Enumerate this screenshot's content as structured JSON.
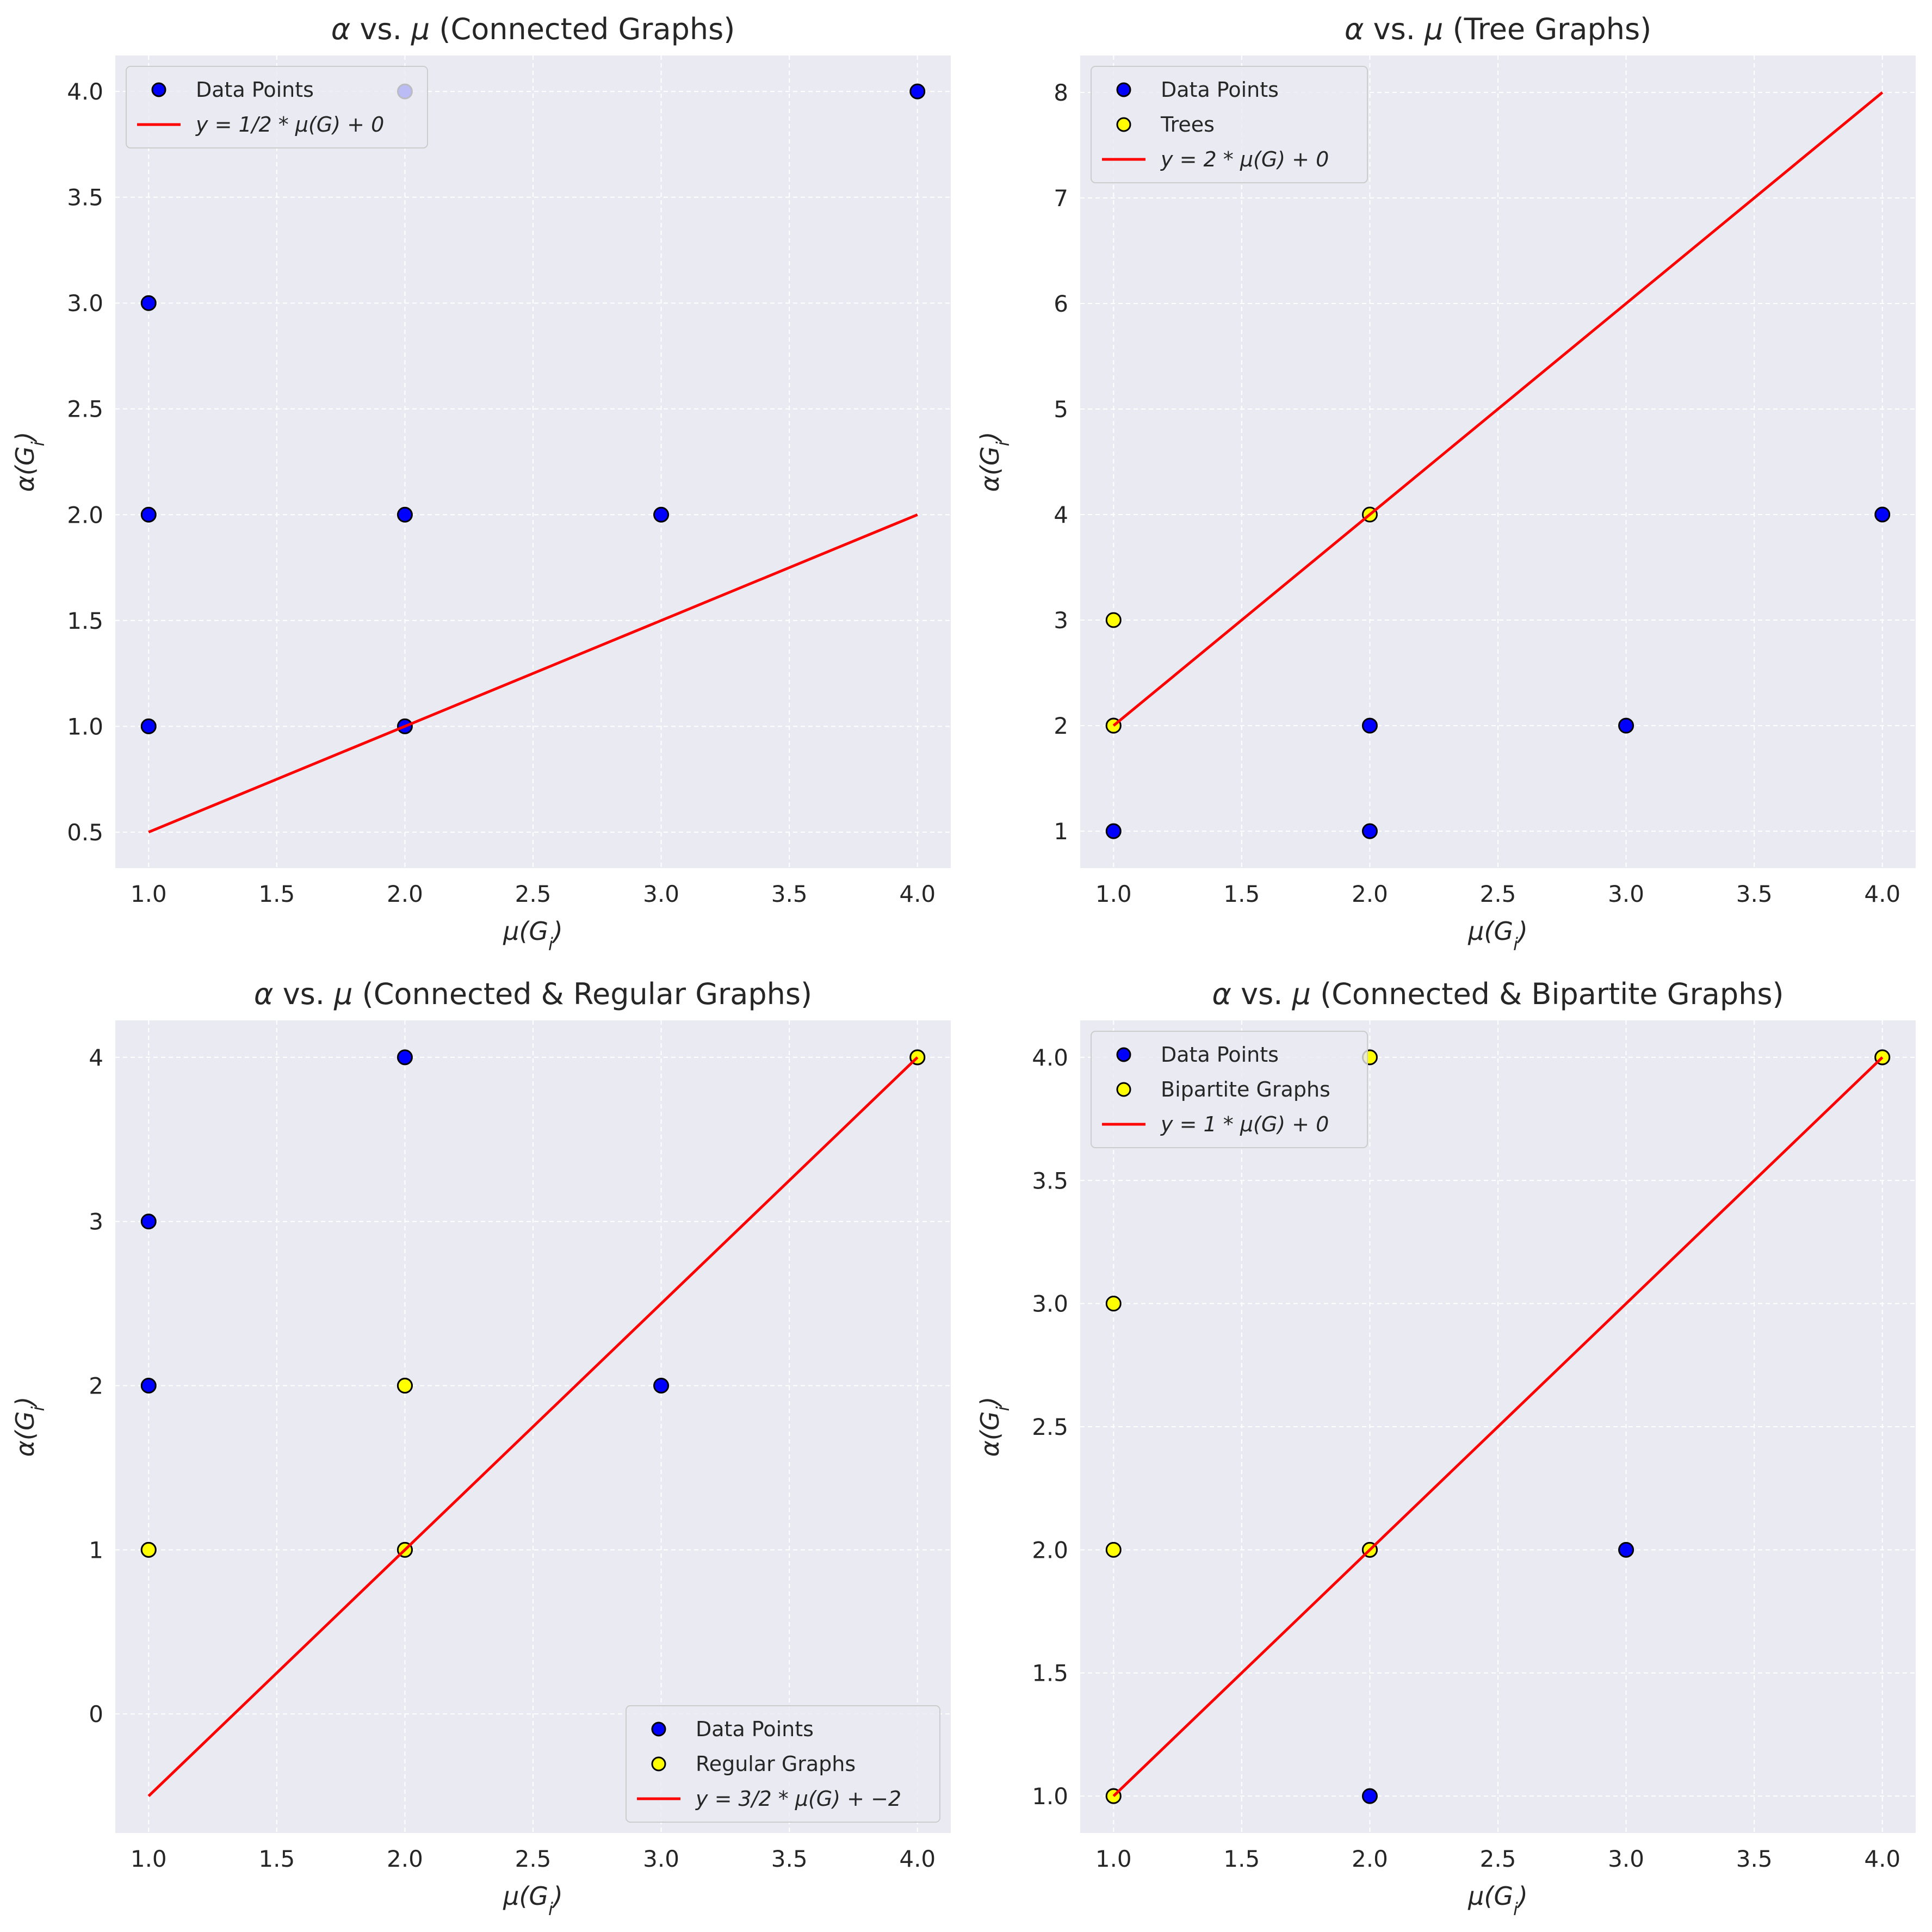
{
  "chart_data": [
    {
      "type": "scatter",
      "title": "α vs. μ (Connected Graphs)",
      "xlabel": "μ(G_i)",
      "ylabel": "α(G_i)",
      "xlim": [
        0.87,
        4.13
      ],
      "ylim": [
        0.33,
        4.17
      ],
      "xticks": [
        "1.0",
        "1.5",
        "2.0",
        "2.5",
        "3.0",
        "3.5",
        "4.0"
      ],
      "yticks": [
        "0.5",
        "1.0",
        "1.5",
        "2.0",
        "2.5",
        "3.0",
        "3.5",
        "4.0"
      ],
      "xtick_values": [
        1.0,
        1.5,
        2.0,
        2.5,
        3.0,
        3.5,
        4.0
      ],
      "ytick_values": [
        0.5,
        1.0,
        1.5,
        2.0,
        2.5,
        3.0,
        3.5,
        4.0
      ],
      "grid": true,
      "legend_position": "top-left",
      "series": [
        {
          "name": "Data Points",
          "kind": "scatter",
          "color": "#0000ff",
          "x": [
            1,
            1,
            1,
            2,
            2,
            2,
            3,
            4
          ],
          "y": [
            1,
            2,
            3,
            1,
            2,
            4,
            2,
            4
          ]
        },
        {
          "name": "y = 1/2 * μ(G) + 0",
          "kind": "line",
          "color": "#ff0000",
          "x": [
            1,
            4
          ],
          "y": [
            0.5,
            2.0
          ]
        }
      ]
    },
    {
      "type": "scatter",
      "title": "α vs. μ (Tree Graphs)",
      "xlabel": "μ(G_i)",
      "ylabel": "α(G_i)",
      "xlim": [
        0.87,
        4.13
      ],
      "ylim": [
        0.65,
        8.35
      ],
      "xticks": [
        "1.0",
        "1.5",
        "2.0",
        "2.5",
        "3.0",
        "3.5",
        "4.0"
      ],
      "yticks": [
        "1",
        "2",
        "3",
        "4",
        "5",
        "6",
        "7",
        "8"
      ],
      "xtick_values": [
        1.0,
        1.5,
        2.0,
        2.5,
        3.0,
        3.5,
        4.0
      ],
      "ytick_values": [
        1,
        2,
        3,
        4,
        5,
        6,
        7,
        8
      ],
      "grid": true,
      "legend_position": "top-left",
      "series": [
        {
          "name": "Data Points",
          "kind": "scatter",
          "color": "#0000ff",
          "x": [
            1,
            1,
            2,
            2,
            3,
            4
          ],
          "y": [
            1,
            2,
            1,
            2,
            2,
            4
          ]
        },
        {
          "name": "Trees",
          "kind": "scatter",
          "color": "#ffff00",
          "x": [
            1,
            1,
            2
          ],
          "y": [
            2,
            3,
            4
          ]
        },
        {
          "name": "y = 2 * μ(G) + 0",
          "kind": "line",
          "color": "#ff0000",
          "x": [
            1,
            4
          ],
          "y": [
            2,
            8
          ]
        }
      ]
    },
    {
      "type": "scatter",
      "title": "α vs. μ (Connected & Regular Graphs)",
      "xlabel": "μ(G_i)",
      "ylabel": "α(G_i)",
      "xlim": [
        0.87,
        4.13
      ],
      "ylim": [
        -0.725,
        4.225
      ],
      "xticks": [
        "1.0",
        "1.5",
        "2.0",
        "2.5",
        "3.0",
        "3.5",
        "4.0"
      ],
      "yticks": [
        "0",
        "1",
        "2",
        "3",
        "4"
      ],
      "xtick_values": [
        1.0,
        1.5,
        2.0,
        2.5,
        3.0,
        3.5,
        4.0
      ],
      "ytick_values": [
        0,
        1,
        2,
        3,
        4
      ],
      "grid": true,
      "legend_position": "bottom-right",
      "series": [
        {
          "name": "Data Points",
          "kind": "scatter",
          "color": "#0000ff",
          "x": [
            1,
            1,
            1,
            2,
            2,
            2,
            3,
            4
          ],
          "y": [
            1,
            2,
            3,
            1,
            2,
            4,
            2,
            4
          ]
        },
        {
          "name": "Regular Graphs",
          "kind": "scatter",
          "color": "#ffff00",
          "x": [
            1,
            2,
            2,
            4
          ],
          "y": [
            1,
            1,
            2,
            4
          ]
        },
        {
          "name": "y = 3/2 * μ(G) + −2",
          "kind": "line",
          "color": "#ff0000",
          "x": [
            1,
            4
          ],
          "y": [
            -0.5,
            4.0
          ]
        }
      ]
    },
    {
      "type": "scatter",
      "title": "α vs. μ (Connected & Bipartite Graphs)",
      "xlabel": "μ(G_i)",
      "ylabel": "α(G_i)",
      "xlim": [
        0.87,
        4.13
      ],
      "ylim": [
        0.85,
        4.15
      ],
      "xticks": [
        "1.0",
        "1.5",
        "2.0",
        "2.5",
        "3.0",
        "3.5",
        "4.0"
      ],
      "yticks": [
        "1.0",
        "1.5",
        "2.0",
        "2.5",
        "3.0",
        "3.5",
        "4.0"
      ],
      "xtick_values": [
        1.0,
        1.5,
        2.0,
        2.5,
        3.0,
        3.5,
        4.0
      ],
      "ytick_values": [
        1.0,
        1.5,
        2.0,
        2.5,
        3.0,
        3.5,
        4.0
      ],
      "grid": true,
      "legend_position": "top-left",
      "series": [
        {
          "name": "Data Points",
          "kind": "scatter",
          "color": "#0000ff",
          "x": [
            1,
            2,
            2,
            3,
            4
          ],
          "y": [
            1,
            1,
            2,
            2,
            4
          ]
        },
        {
          "name": "Bipartite Graphs",
          "kind": "scatter",
          "color": "#ffff00",
          "x": [
            1,
            1,
            1,
            2,
            2,
            4
          ],
          "y": [
            1,
            2,
            3,
            2,
            4,
            4
          ]
        },
        {
          "name": "y = 1 * μ(G) + 0",
          "kind": "line",
          "color": "#ff0000",
          "x": [
            1,
            4
          ],
          "y": [
            1,
            4
          ]
        }
      ]
    }
  ],
  "colors": {
    "panel_background": "#eaeaf2",
    "grid": "#ffffff",
    "marker_edge": "#000000",
    "text": "#262626"
  }
}
